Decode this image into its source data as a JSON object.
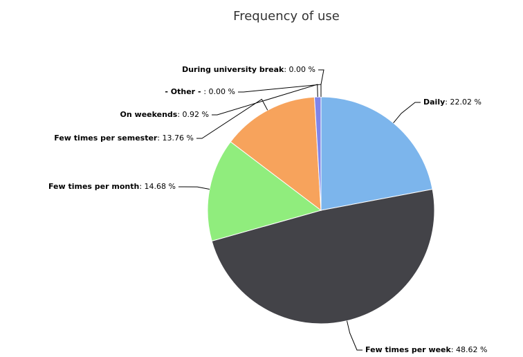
{
  "chart_data": {
    "type": "pie",
    "title": "Frequency of use",
    "categories": [
      "Daily",
      "Few times per week",
      "Few times per month",
      "Few times per semester",
      "On weekends",
      "- Other - ",
      "During university break"
    ],
    "values": [
      22.02,
      48.62,
      14.68,
      13.76,
      0.92,
      0.0,
      0.0
    ],
    "value_labels": [
      ": 22.02 %",
      ": 48.62 %",
      ": 14.68 %",
      ": 13.76 %",
      ": 0.92 %",
      ": 0.00 %",
      ": 0.00 %"
    ],
    "colors": [
      "#7cb5ec",
      "#434348",
      "#90ed7d",
      "#f7a35c",
      "#8085e9",
      "#f15c80",
      "#e4d354"
    ]
  }
}
